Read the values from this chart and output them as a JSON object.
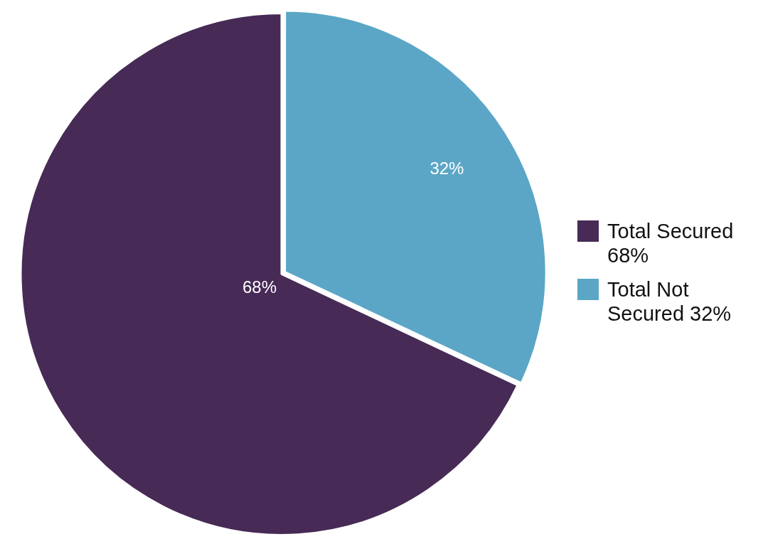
{
  "chart_data": {
    "type": "pie",
    "categories": [
      "Total Secured 68%",
      "Total Not Secured 32%"
    ],
    "values": [
      68,
      32
    ],
    "colors": [
      "#472a55",
      "#5ba6c6"
    ],
    "value_labels": [
      "68%",
      "32%"
    ],
    "legend": "right"
  }
}
